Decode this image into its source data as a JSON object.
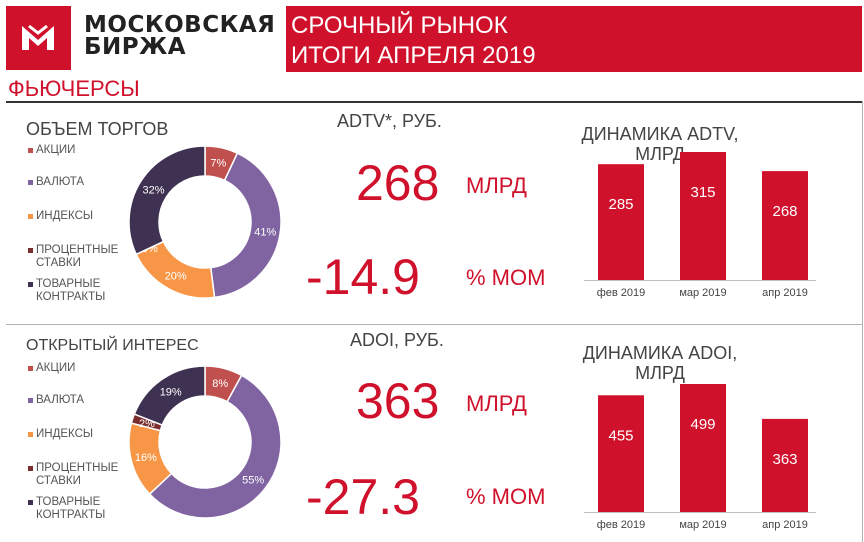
{
  "header": {
    "brand_line1": "МОСКОВСКАЯ",
    "brand_line2": "БИРЖА",
    "title_line1": "СРОЧНЫЙ РЫНОК",
    "title_line2": "ИТОГИ АПРЕЛЯ 2019"
  },
  "section_title": "ФЬЮЧЕРСЫ",
  "colors": {
    "accent": "#d0112b",
    "stocks": "#c0504d",
    "currency": "#8064a2",
    "indices": "#f79646",
    "rates": "#7b2e2e",
    "commodities": "#3f3151",
    "bar": "#d0112b"
  },
  "volume": {
    "title": "ОБЪЕМ ТОРГОВ",
    "metric_label": "ADTV*, РУБ.",
    "value": "268",
    "value_unit": "МЛРД",
    "change": "-14.9",
    "change_unit": "% МОМ",
    "bar_title_line1": "ДИНАМИКА ADTV,",
    "bar_title_line2": "МЛРД"
  },
  "oi": {
    "title": "ОТКРЫТЫЙ ИНТЕРЕС",
    "metric_label": "ADOI, РУБ.",
    "value": "363",
    "value_unit": "МЛРД",
    "change": "-27.3",
    "change_unit": "% МОМ",
    "bar_title_line1": "ДИНАМИКА ADOI,",
    "bar_title_line2": "МЛРД"
  },
  "legend": [
    {
      "label": "АКЦИИ",
      "color": "#c0504d"
    },
    {
      "label": "ВАЛЮТА",
      "color": "#8064a2"
    },
    {
      "label": "ИНДЕКСЫ",
      "color": "#f79646"
    },
    {
      "label": "ПРОЦЕНТНЫЕ СТАВКИ",
      "color": "#7b2e2e"
    },
    {
      "label": "ТОВАРНЫЕ КОНТРАКТЫ",
      "color": "#3f3151"
    }
  ],
  "chart_data": [
    {
      "type": "pie",
      "title": "ОБЪЕМ ТОРГОВ",
      "categories": [
        "АКЦИИ",
        "ВАЛЮТА",
        "ИНДЕКСЫ",
        "ПРОЦЕНТНЫЕ СТАВКИ",
        "ТОВАРНЫЕ КОНТРАКТЫ"
      ],
      "values": [
        7,
        41,
        20,
        0,
        32
      ],
      "labels": [
        "7%",
        "41%",
        "20%",
        "0%",
        "32%"
      ]
    },
    {
      "type": "bar",
      "title": "ДИНАМИКА ADTV, МЛРД",
      "categories": [
        "фев 2019",
        "мар 2019",
        "апр 2019"
      ],
      "values": [
        285,
        315,
        268
      ],
      "labels": [
        "285",
        "315",
        "268"
      ]
    },
    {
      "type": "pie",
      "title": "ОТКРЫТЫЙ ИНТЕРЕС",
      "categories": [
        "АКЦИИ",
        "ВАЛЮТА",
        "ИНДЕКСЫ",
        "ПРОЦЕНТНЫЕ СТАВКИ",
        "ТОВАРНЫЕ КОНТРАКТЫ"
      ],
      "values": [
        8,
        55,
        16,
        2,
        19
      ],
      "labels": [
        "8%",
        "55%",
        "16%",
        "2%",
        "19%"
      ]
    },
    {
      "type": "bar",
      "title": "ДИНАМИКА ADOI, МЛРД",
      "categories": [
        "фев 2019",
        "мар 2019",
        "апр 2019"
      ],
      "values": [
        455,
        499,
        363
      ],
      "labels": [
        "455",
        "499",
        "363"
      ]
    }
  ]
}
